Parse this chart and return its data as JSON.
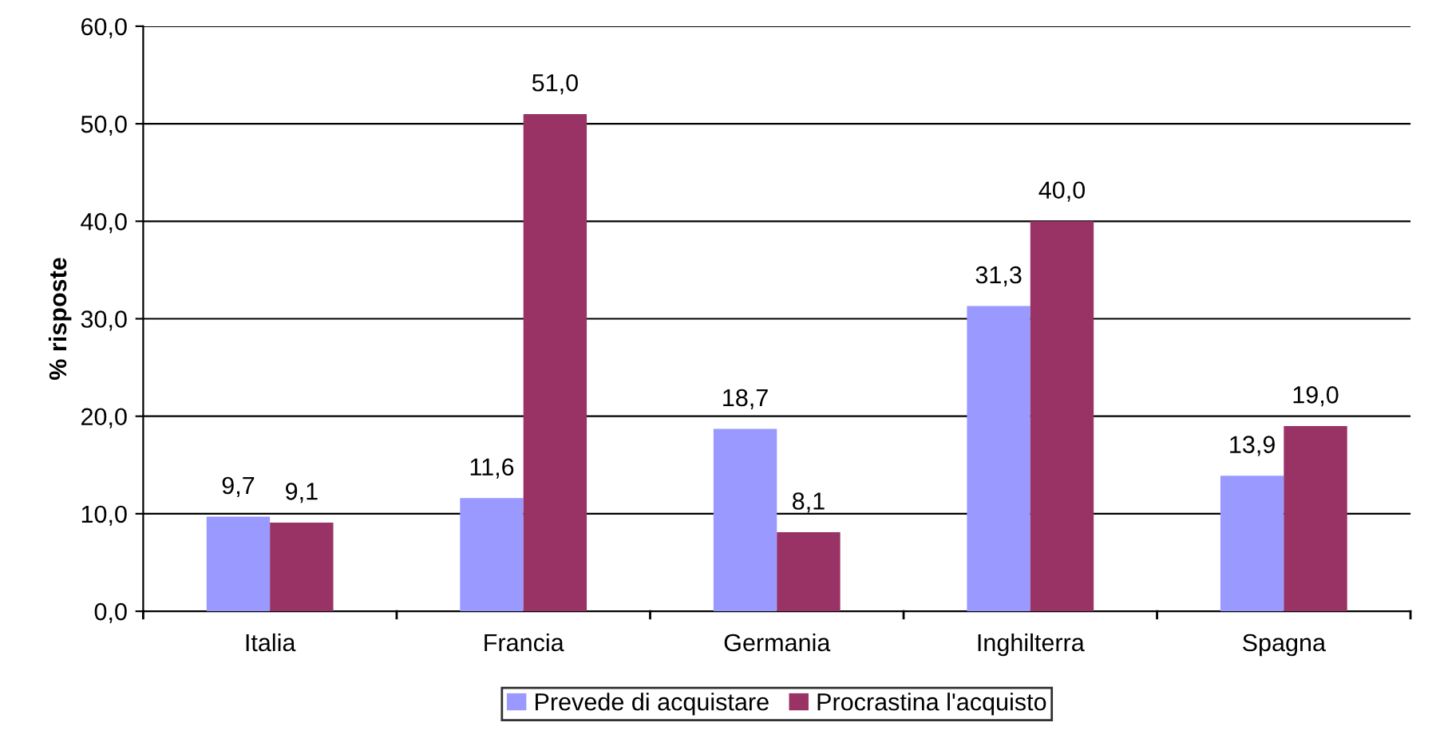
{
  "chart_data": {
    "type": "bar",
    "ylabel": "% risposte",
    "categories": [
      "Italia",
      "Francia",
      "Germania",
      "Inghilterra",
      "Spagna"
    ],
    "series": [
      {
        "name": "Prevede di acquistare",
        "color": "#9999ff",
        "values": [
          9.7,
          11.6,
          18.7,
          31.3,
          13.9
        ],
        "value_labels": [
          "9,7",
          "11,6",
          "18,7",
          "31,3",
          "13,9"
        ]
      },
      {
        "name": "Procrastina l'acquisto",
        "color": "#993366",
        "values": [
          9.1,
          51.0,
          8.1,
          40.0,
          19.0
        ],
        "value_labels": [
          "9,1",
          "51,0",
          "8,1",
          "40,0",
          "19,0"
        ]
      }
    ],
    "ylim": [
      0,
      60
    ],
    "yticks": [
      {
        "value": 0,
        "label": "0,0"
      },
      {
        "value": 10,
        "label": "10,0"
      },
      {
        "value": 20,
        "label": "20,0"
      },
      {
        "value": 30,
        "label": "30,0"
      },
      {
        "value": 40,
        "label": "40,0"
      },
      {
        "value": 50,
        "label": "50,0"
      },
      {
        "value": 60,
        "label": "60,0"
      }
    ],
    "grid": "y",
    "legend": "bottom"
  }
}
